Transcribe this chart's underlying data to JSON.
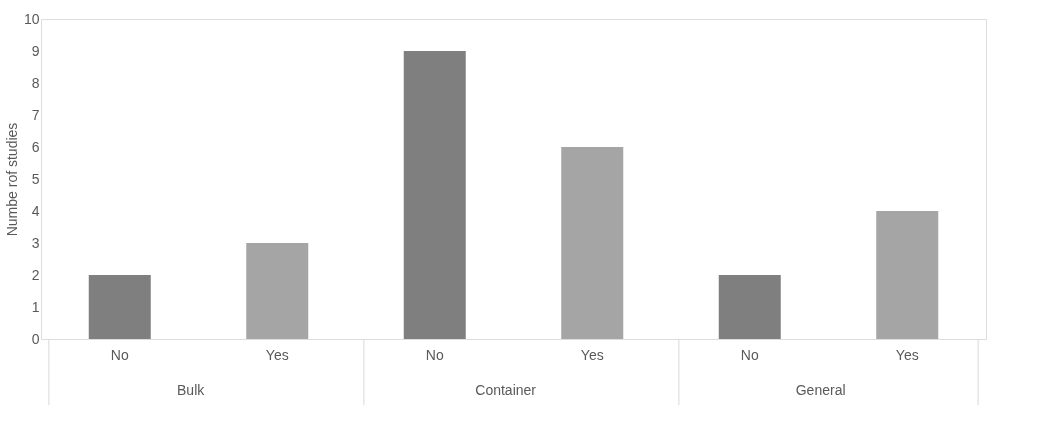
{
  "chart_data": {
    "type": "bar",
    "ylabel": "Numbe rof studies",
    "categories": [
      "No",
      "Yes",
      "No",
      "Yes",
      "No",
      "Yes"
    ],
    "values": [
      2,
      3,
      9,
      6,
      2,
      4
    ],
    "colors": [
      "#7f7f7f",
      "#a5a5a5",
      "#7f7f7f",
      "#a5a5a5",
      "#7f7f7f",
      "#a5a5a5"
    ],
    "ylim": [
      0,
      10
    ],
    "yticks": [
      0,
      1,
      2,
      3,
      4,
      5,
      6,
      7,
      8,
      9,
      10
    ],
    "grid": false,
    "annotations": [
      "Bulk",
      "Container",
      "General"
    ]
  }
}
